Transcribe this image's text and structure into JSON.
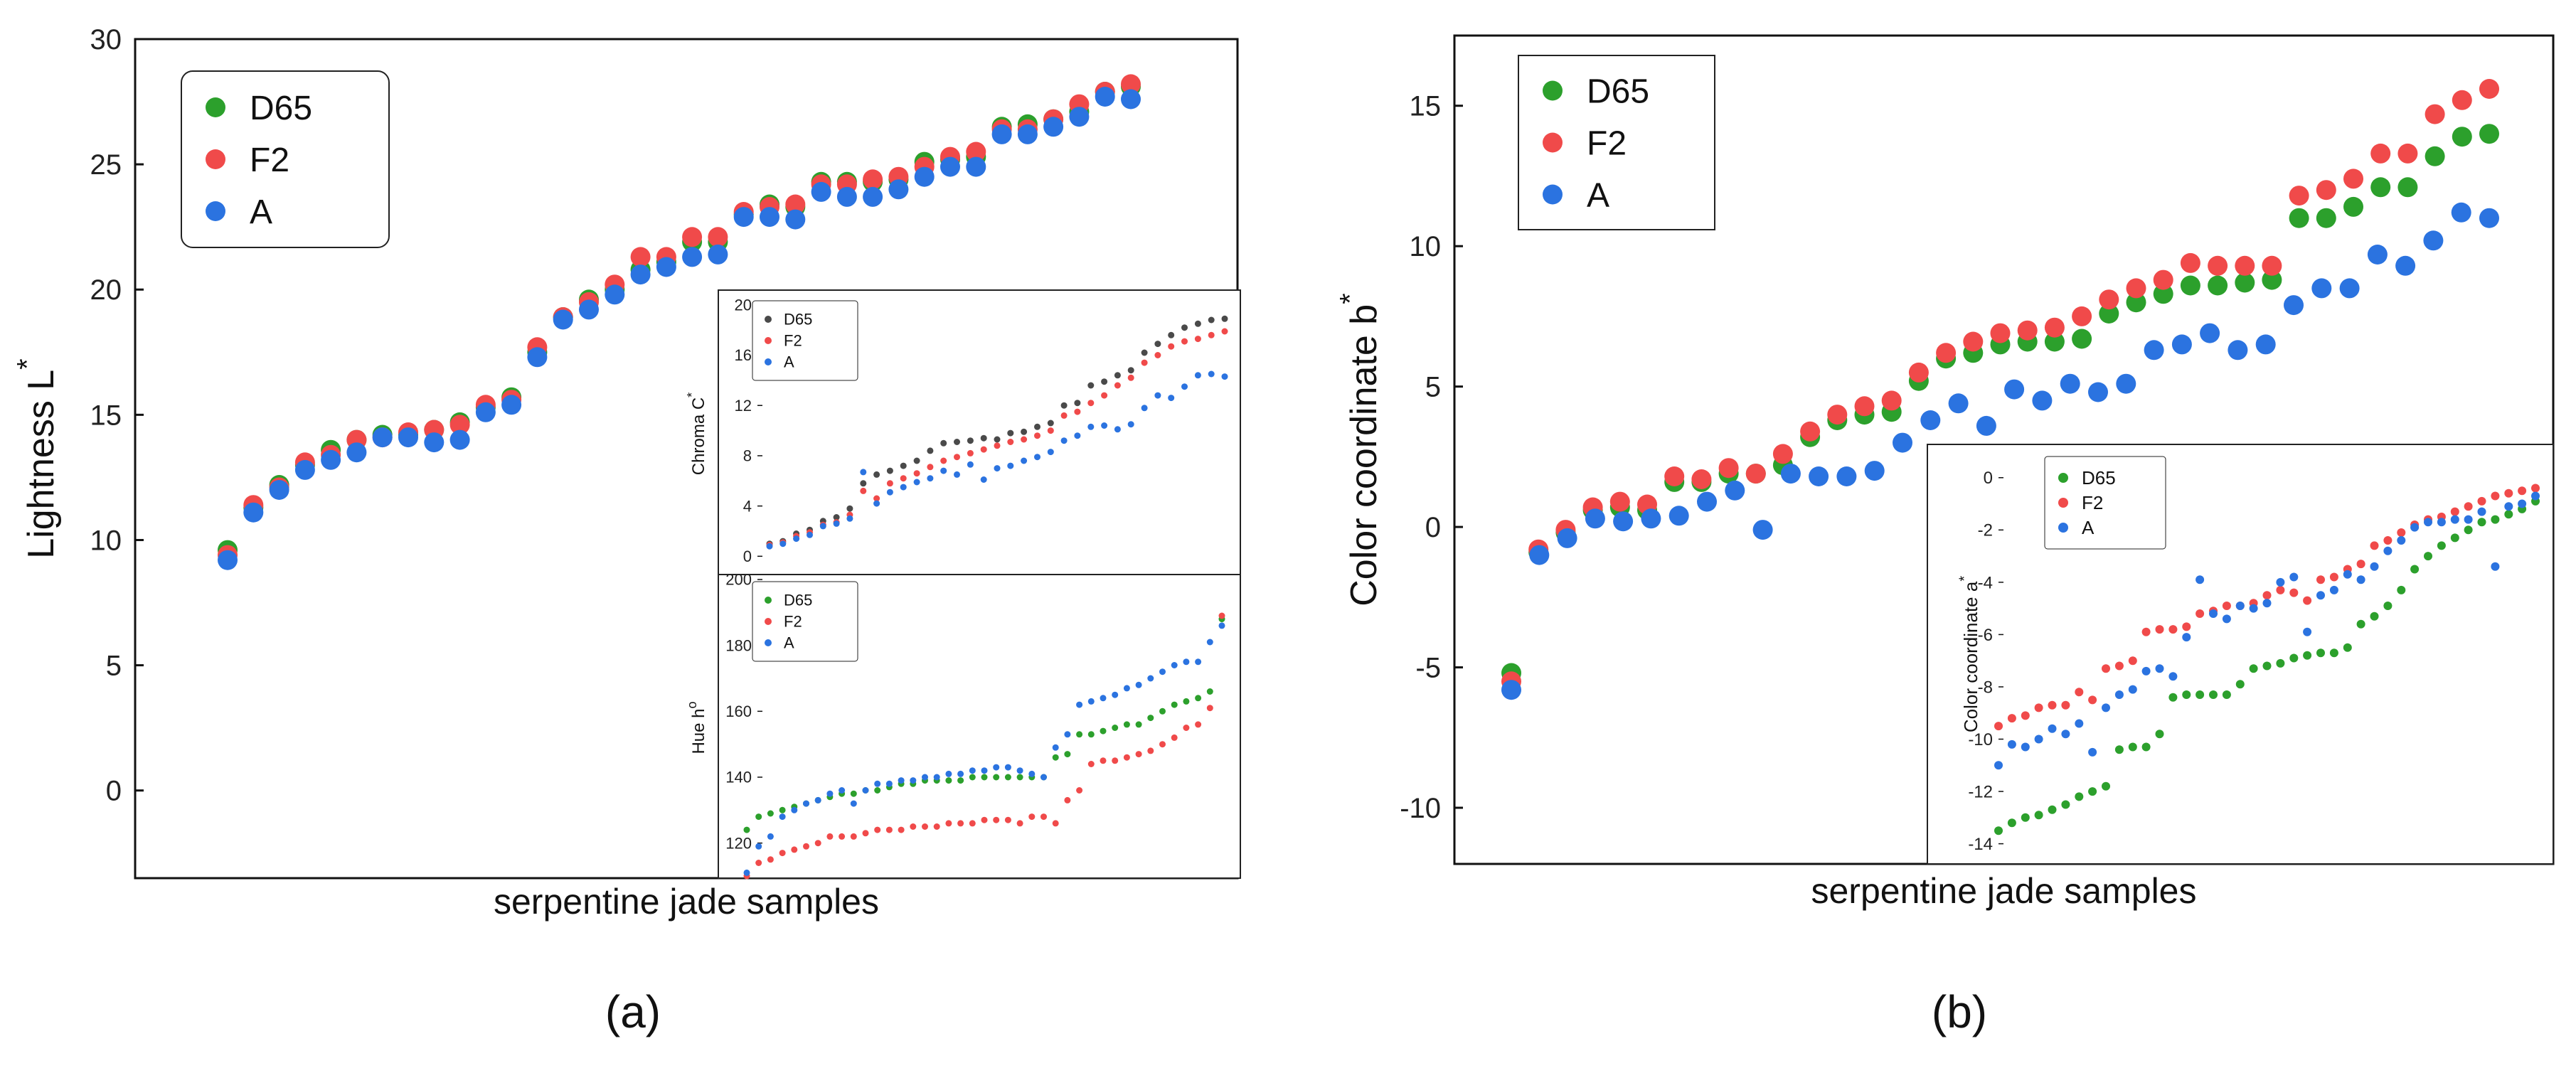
{
  "colors": {
    "D65": "#2ca02c",
    "F2": "#f04a4a",
    "A": "#2b73e0",
    "D65_dark": "#4a4a4a"
  },
  "chart_data": [
    {
      "id": "a",
      "panel_label": "(a)",
      "type": "scatter",
      "xlabel": "serpentine jade samples",
      "ylabel_main": "Lightness L",
      "ylabel_sup": "*",
      "ylim": [
        -3.5,
        30
      ],
      "yticks": [
        0,
        5,
        10,
        15,
        20,
        25,
        30
      ],
      "legend": [
        "D65",
        "F2",
        "A"
      ],
      "series": [
        {
          "name": "D65",
          "values": [
            9.6,
            11.3,
            12.2,
            13.0,
            13.6,
            14.0,
            14.2,
            14.2,
            14.4,
            14.7,
            15.3,
            15.7,
            17.5,
            18.9,
            19.6,
            20.0,
            20.8,
            21.1,
            21.9,
            21.9,
            23.0,
            23.4,
            23.3,
            24.3,
            24.3,
            24.3,
            24.4,
            25.1,
            25.2,
            25.3,
            26.5,
            26.6,
            26.8,
            27.1,
            27.9,
            28.1
          ]
        },
        {
          "name": "F2",
          "values": [
            9.4,
            11.4,
            12.1,
            13.1,
            13.4,
            14.0,
            14.1,
            14.3,
            14.4,
            14.6,
            15.4,
            15.6,
            17.7,
            18.9,
            19.5,
            20.2,
            21.3,
            21.3,
            22.1,
            22.1,
            23.1,
            23.3,
            23.4,
            24.2,
            24.2,
            24.4,
            24.5,
            24.9,
            25.3,
            25.5,
            26.4,
            26.4,
            26.8,
            27.4,
            27.9,
            28.2
          ]
        },
        {
          "name": "A",
          "values": [
            9.2,
            11.1,
            12.0,
            12.8,
            13.2,
            13.5,
            14.1,
            14.1,
            13.9,
            14.0,
            15.1,
            15.4,
            17.3,
            18.8,
            19.2,
            19.8,
            20.6,
            20.9,
            21.3,
            21.4,
            22.9,
            22.9,
            22.8,
            23.9,
            23.7,
            23.7,
            24.0,
            24.5,
            24.9,
            24.9,
            26.2,
            26.2,
            26.5,
            26.9,
            27.7,
            27.6
          ]
        }
      ]
    },
    {
      "id": "a_inset_chroma",
      "type": "scatter",
      "ylabel_main": "Chroma C",
      "ylabel_sup": "*",
      "ylim": [
        -1,
        20.5
      ],
      "yticks": [
        0,
        4,
        8,
        12,
        16,
        20
      ],
      "legend": [
        "D65",
        "F2",
        "A"
      ],
      "series": [
        {
          "name": "D65",
          "values": [
            1.0,
            1.2,
            1.8,
            2.1,
            2.8,
            3.1,
            3.8,
            5.8,
            6.5,
            6.8,
            7.2,
            7.6,
            8.4,
            9.0,
            9.1,
            9.2,
            9.4,
            9.3,
            9.8,
            9.9,
            10.3,
            10.6,
            12.0,
            12.2,
            13.6,
            13.9,
            14.4,
            14.8,
            16.2,
            16.9,
            17.6,
            18.2,
            18.5,
            18.8,
            18.9
          ]
        },
        {
          "name": "F2",
          "values": [
            0.9,
            1.1,
            1.6,
            1.9,
            2.5,
            2.7,
            3.3,
            5.2,
            4.6,
            5.8,
            6.2,
            6.6,
            7.1,
            7.6,
            7.9,
            8.2,
            8.5,
            8.8,
            9.1,
            9.3,
            9.6,
            10.0,
            11.2,
            11.5,
            12.2,
            12.8,
            13.6,
            14.2,
            15.4,
            16.0,
            16.7,
            17.1,
            17.3,
            17.6,
            17.9
          ]
        },
        {
          "name": "A",
          "values": [
            0.8,
            1.0,
            1.4,
            1.7,
            2.4,
            2.6,
            3.0,
            6.7,
            4.2,
            5.1,
            5.5,
            5.9,
            6.2,
            6.8,
            6.5,
            7.3,
            6.1,
            7.0,
            7.2,
            7.6,
            7.9,
            8.3,
            9.2,
            9.6,
            10.3,
            10.4,
            10.1,
            10.5,
            11.8,
            12.8,
            12.6,
            13.5,
            14.4,
            14.5,
            14.3
          ]
        }
      ]
    },
    {
      "id": "a_inset_hue",
      "type": "scatter",
      "ylabel_main": "Hue h",
      "ylabel_sup": "o",
      "ylim": [
        110,
        200
      ],
      "yticks": [
        120,
        140,
        160,
        180,
        200
      ],
      "legend": [
        "D65",
        "F2",
        "A"
      ],
      "series": [
        {
          "name": "D65",
          "values": [
            124,
            128,
            129,
            130,
            131,
            132,
            133,
            134,
            135,
            135,
            136,
            136,
            137,
            138,
            138,
            139,
            139,
            139,
            139,
            140,
            140,
            140,
            140,
            140,
            140,
            140,
            146,
            147,
            153,
            153,
            154,
            155,
            156,
            156,
            158,
            160,
            162,
            163,
            164,
            166,
            188
          ]
        },
        {
          "name": "F2",
          "values": [
            110,
            114,
            115,
            117,
            118,
            119,
            120,
            122,
            122,
            122,
            123,
            124,
            124,
            124,
            125,
            125,
            125,
            126,
            126,
            126,
            127,
            127,
            127,
            126,
            128,
            128,
            126,
            133,
            136,
            144,
            145,
            145,
            146,
            147,
            148,
            150,
            152,
            155,
            156,
            161,
            189
          ]
        },
        {
          "name": "A",
          "values": [
            111,
            119,
            122,
            128,
            130,
            132,
            133,
            135,
            136,
            132,
            136,
            138,
            138,
            139,
            139,
            140,
            140,
            141,
            141,
            142,
            142,
            143,
            143,
            142,
            141,
            140,
            149,
            153,
            162,
            163,
            164,
            165,
            167,
            168,
            170,
            172,
            174,
            175,
            175,
            181,
            186
          ]
        }
      ]
    },
    {
      "id": "b",
      "panel_label": "(b)",
      "type": "scatter",
      "xlabel": "serpentine jade samples",
      "ylabel_main": "Color coordinate b",
      "ylabel_sup": "*",
      "ylim": [
        -12,
        17.5
      ],
      "yticks": [
        -10,
        -5,
        0,
        5,
        10,
        15
      ],
      "legend": [
        "D65",
        "F2",
        "A"
      ],
      "series": [
        {
          "name": "D65",
          "values": [
            -5.2,
            -0.9,
            -0.2,
            0.6,
            0.7,
            0.6,
            1.6,
            1.6,
            1.9,
            1.9,
            2.2,
            3.2,
            3.8,
            4.0,
            4.1,
            5.2,
            6.0,
            6.2,
            6.5,
            6.6,
            6.6,
            6.7,
            7.6,
            8.0,
            8.3,
            8.6,
            8.6,
            8.7,
            8.8,
            11.0,
            11.0,
            11.4,
            12.1,
            12.1,
            13.2,
            13.9,
            14.0
          ]
        },
        {
          "name": "F2",
          "values": [
            -5.5,
            -0.8,
            -0.1,
            0.7,
            0.9,
            0.8,
            1.8,
            1.7,
            2.1,
            1.9,
            2.6,
            3.4,
            4.0,
            4.3,
            4.5,
            5.5,
            6.2,
            6.6,
            6.9,
            7.0,
            7.1,
            7.5,
            8.1,
            8.5,
            8.8,
            9.4,
            9.3,
            9.3,
            9.3,
            11.8,
            12.0,
            12.4,
            13.3,
            13.3,
            14.7,
            15.2,
            15.6
          ]
        },
        {
          "name": "A",
          "values": [
            -5.8,
            -1.0,
            -0.4,
            0.3,
            0.2,
            0.3,
            0.4,
            0.9,
            1.3,
            -0.1,
            1.9,
            1.8,
            1.8,
            2.0,
            3.0,
            3.8,
            4.4,
            3.6,
            4.9,
            4.5,
            5.1,
            4.8,
            5.1,
            6.3,
            6.5,
            6.9,
            6.3,
            6.5,
            7.9,
            8.5,
            8.5,
            9.7,
            9.3,
            10.2,
            11.2,
            11.0
          ]
        }
      ]
    },
    {
      "id": "b_inset_a",
      "type": "scatter",
      "ylabel_main": "Color coordinate a",
      "ylabel_sup": "*",
      "ylim": [
        -14.5,
        1
      ],
      "yticks": [
        -14,
        -12,
        -10,
        -8,
        -6,
        -4,
        -2,
        0
      ],
      "legend": [
        "D65",
        "F2",
        "A"
      ],
      "series": [
        {
          "name": "D65",
          "values": [
            -13.5,
            -13.2,
            -13.0,
            -12.9,
            -12.7,
            -12.5,
            -12.2,
            -12.0,
            -11.8,
            -10.4,
            -10.3,
            -10.3,
            -9.8,
            -8.4,
            -8.3,
            -8.3,
            -8.3,
            -8.3,
            -7.9,
            -7.3,
            -7.2,
            -7.1,
            -6.9,
            -6.8,
            -6.7,
            -6.7,
            -6.5,
            -5.6,
            -5.3,
            -4.9,
            -4.3,
            -3.5,
            -3.0,
            -2.6,
            -2.3,
            -2.0,
            -1.7,
            -1.6,
            -1.4,
            -1.2,
            -0.9
          ]
        },
        {
          "name": "F2",
          "values": [
            -9.5,
            -9.2,
            -9.1,
            -8.8,
            -8.7,
            -8.7,
            -8.2,
            -8.5,
            -7.3,
            -7.2,
            -7.0,
            -5.9,
            -5.8,
            -5.8,
            -5.7,
            -5.2,
            -5.1,
            -4.9,
            -4.9,
            -4.8,
            -4.5,
            -4.3,
            -4.4,
            -4.7,
            -3.9,
            -3.8,
            -3.5,
            -3.3,
            -2.6,
            -2.4,
            -2.1,
            -1.8,
            -1.6,
            -1.5,
            -1.3,
            -1.1,
            -0.9,
            -0.7,
            -0.6,
            -0.5,
            -0.4
          ]
        },
        {
          "name": "A",
          "values": [
            -11.0,
            -10.2,
            -10.3,
            -10.0,
            -9.6,
            -9.8,
            -9.4,
            -10.5,
            -8.8,
            -8.3,
            -8.1,
            -7.4,
            -7.3,
            -7.6,
            -6.1,
            -3.9,
            -5.2,
            -5.4,
            -4.9,
            -5.0,
            -4.8,
            -4.0,
            -3.8,
            -5.9,
            -4.5,
            -4.3,
            -3.7,
            -3.9,
            -3.4,
            -2.8,
            -2.4,
            -1.9,
            -1.7,
            -1.7,
            -1.6,
            -1.6,
            -1.3,
            -3.4,
            -1.1,
            -1.0,
            -0.7
          ]
        }
      ]
    }
  ]
}
